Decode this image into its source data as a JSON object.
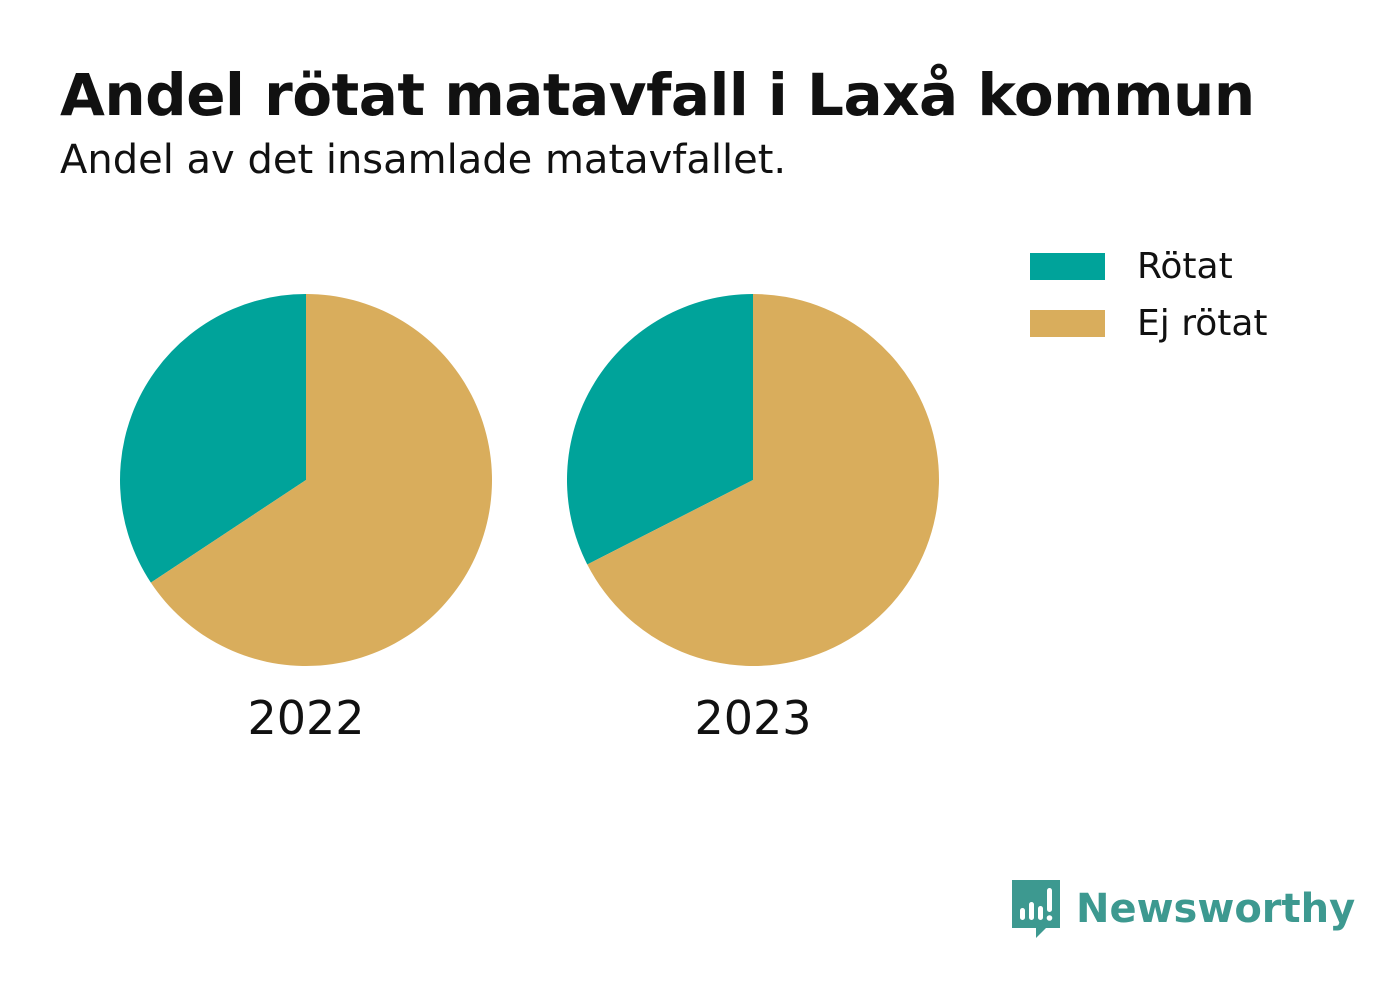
{
  "title": "Andel rötat matavfall i Laxå kommun",
  "subtitle": "Andel av det insamlade matavfallet.",
  "colors": {
    "rotat": "#00a39a",
    "ej_rotat": "#d9ad5c",
    "brand": "#3d9990"
  },
  "legend": [
    {
      "label": "Rötat",
      "color": "#00a39a"
    },
    {
      "label": "Ej rötat",
      "color": "#d9ad5c"
    }
  ],
  "chart_data": {
    "type": "pie",
    "title": "Andel rötat matavfall i Laxå kommun",
    "subtitle": "Andel av det insamlade matavfallet.",
    "categories": [
      "Rötat",
      "Ej rötat"
    ],
    "start": "top, counterclockwise for Rötat",
    "pies": [
      {
        "label": "2022",
        "values": [
          34.3,
          65.7
        ]
      },
      {
        "label": "2023",
        "values": [
          32.5,
          67.5
        ]
      }
    ],
    "legend_position": "top-right"
  },
  "logo": {
    "name": "Newsworthy",
    "icon": "bar-chart-bubble-icon"
  }
}
